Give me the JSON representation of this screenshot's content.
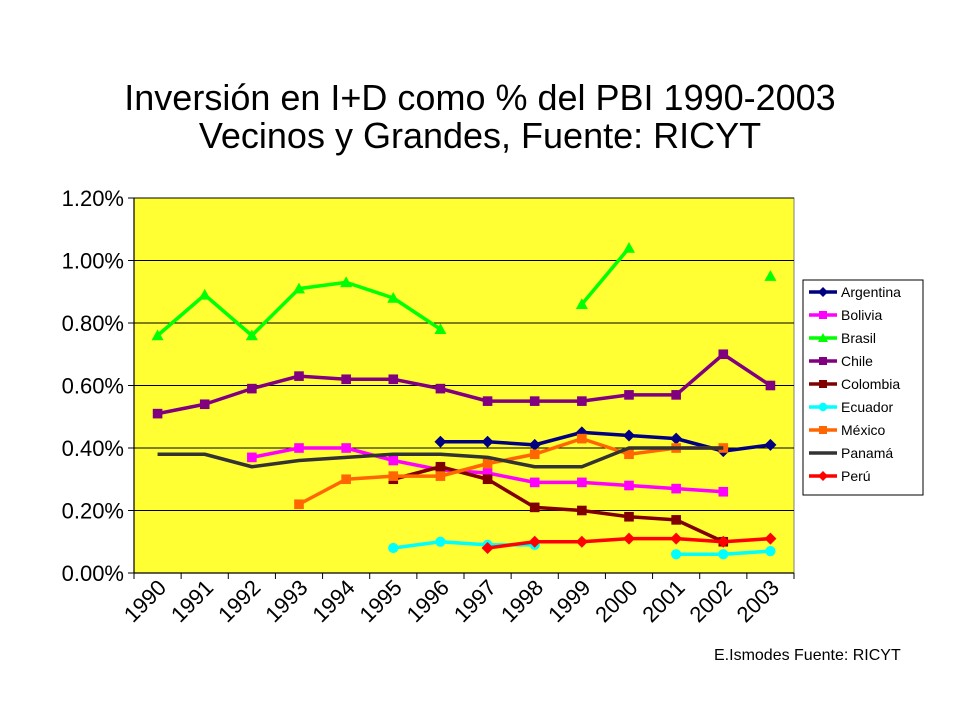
{
  "chart_data": {
    "type": "line",
    "title": "Inversión en I+D como % del PBI 1990-2003",
    "subtitle": "Vecinos y Grandes, Fuente: RICYT",
    "xlabel": "",
    "ylabel": "",
    "categories": [
      "1990",
      "1991",
      "1992",
      "1993",
      "1994",
      "1995",
      "1996",
      "1997",
      "1998",
      "1999",
      "2000",
      "2001",
      "2002",
      "2003"
    ],
    "ylim": [
      0,
      1.2
    ],
    "yticks": [
      "0.00%",
      "0.20%",
      "0.40%",
      "0.60%",
      "0.80%",
      "1.00%",
      "1.20%"
    ],
    "grid": true,
    "plot_background": "#FFFF33",
    "legend_position": "right",
    "series": [
      {
        "name": "Argentina",
        "color": "#000080",
        "marker": "diamond",
        "values": [
          null,
          null,
          null,
          null,
          null,
          null,
          0.42,
          0.42,
          0.41,
          0.45,
          0.44,
          0.43,
          0.39,
          0.41
        ]
      },
      {
        "name": "Bolivia",
        "color": "#FF00FF",
        "marker": "square",
        "values": [
          null,
          null,
          0.37,
          0.4,
          0.4,
          0.36,
          0.33,
          0.32,
          0.29,
          0.29,
          0.28,
          0.27,
          0.26,
          null
        ]
      },
      {
        "name": "Brasil",
        "color": "#00FF00",
        "marker": "triangle",
        "values": [
          0.76,
          0.89,
          0.76,
          0.91,
          0.93,
          0.88,
          0.78,
          null,
          null,
          0.86,
          1.04,
          null,
          null,
          0.95
        ]
      },
      {
        "name": "Chile",
        "color": "#800080",
        "marker": "square",
        "values": [
          0.51,
          0.54,
          0.59,
          0.63,
          0.62,
          0.62,
          0.59,
          0.55,
          0.55,
          0.55,
          0.57,
          0.57,
          0.7,
          0.6
        ]
      },
      {
        "name": "Colombia",
        "color": "#800000",
        "marker": "square",
        "values": [
          null,
          null,
          null,
          null,
          null,
          0.3,
          0.34,
          0.3,
          0.21,
          0.2,
          0.18,
          0.17,
          0.1,
          null
        ]
      },
      {
        "name": "Ecuador",
        "color": "#00FFFF",
        "marker": "circle",
        "values": [
          null,
          null,
          null,
          null,
          null,
          0.08,
          0.1,
          0.09,
          0.09,
          null,
          null,
          0.06,
          0.06,
          0.07
        ]
      },
      {
        "name": "México",
        "color": "#FF6600",
        "marker": "square",
        "values": [
          null,
          null,
          null,
          0.22,
          0.3,
          0.31,
          0.31,
          0.35,
          0.38,
          0.43,
          0.38,
          0.4,
          0.4,
          null
        ]
      },
      {
        "name": "Panamá",
        "color": "#333333",
        "marker": "none",
        "values": [
          0.38,
          0.38,
          0.34,
          0.36,
          0.37,
          0.38,
          0.38,
          0.37,
          0.34,
          0.34,
          0.4,
          0.4,
          0.4,
          null
        ]
      },
      {
        "name": "Perú",
        "color": "#FF0000",
        "marker": "diamond",
        "values": [
          null,
          null,
          null,
          null,
          null,
          null,
          null,
          0.08,
          0.1,
          0.1,
          0.11,
          0.11,
          0.1,
          0.11
        ]
      }
    ]
  },
  "footer": "E.Ismodes Fuente: RICYT"
}
